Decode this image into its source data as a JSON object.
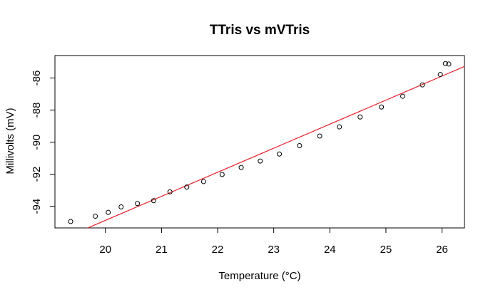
{
  "chart_data": {
    "type": "scatter",
    "title": "TTris vs mVTris",
    "xlabel": "Temperature (°C)",
    "ylabel": "Millivolts (mV)",
    "xlim": [
      19.1,
      26.4
    ],
    "ylim": [
      -95.35,
      -84.6
    ],
    "xticks": [
      20,
      21,
      22,
      23,
      24,
      25,
      26
    ],
    "yticks": [
      -94,
      -92,
      -90,
      -88,
      -86
    ],
    "grid": false,
    "points": [
      {
        "x": 19.38,
        "y": -94.95
      },
      {
        "x": 19.82,
        "y": -94.62
      },
      {
        "x": 20.05,
        "y": -94.38
      },
      {
        "x": 20.28,
        "y": -94.04
      },
      {
        "x": 20.57,
        "y": -93.83
      },
      {
        "x": 20.86,
        "y": -93.65
      },
      {
        "x": 21.15,
        "y": -93.1
      },
      {
        "x": 21.45,
        "y": -92.8
      },
      {
        "x": 21.75,
        "y": -92.46
      },
      {
        "x": 22.08,
        "y": -92.02
      },
      {
        "x": 22.42,
        "y": -91.58
      },
      {
        "x": 22.76,
        "y": -91.18
      },
      {
        "x": 23.1,
        "y": -90.74
      },
      {
        "x": 23.46,
        "y": -90.22
      },
      {
        "x": 23.82,
        "y": -89.62
      },
      {
        "x": 24.17,
        "y": -89.05
      },
      {
        "x": 24.54,
        "y": -88.43
      },
      {
        "x": 24.92,
        "y": -87.81
      },
      {
        "x": 25.3,
        "y": -87.14
      },
      {
        "x": 25.65,
        "y": -86.43
      },
      {
        "x": 25.97,
        "y": -85.78
      },
      {
        "x": 26.06,
        "y": -85.1
      },
      {
        "x": 26.12,
        "y": -85.13
      }
    ],
    "fit_line": {
      "slope": 1.5,
      "intercept": -124.88,
      "color": "#e3202a"
    },
    "point_color": "#000000"
  }
}
